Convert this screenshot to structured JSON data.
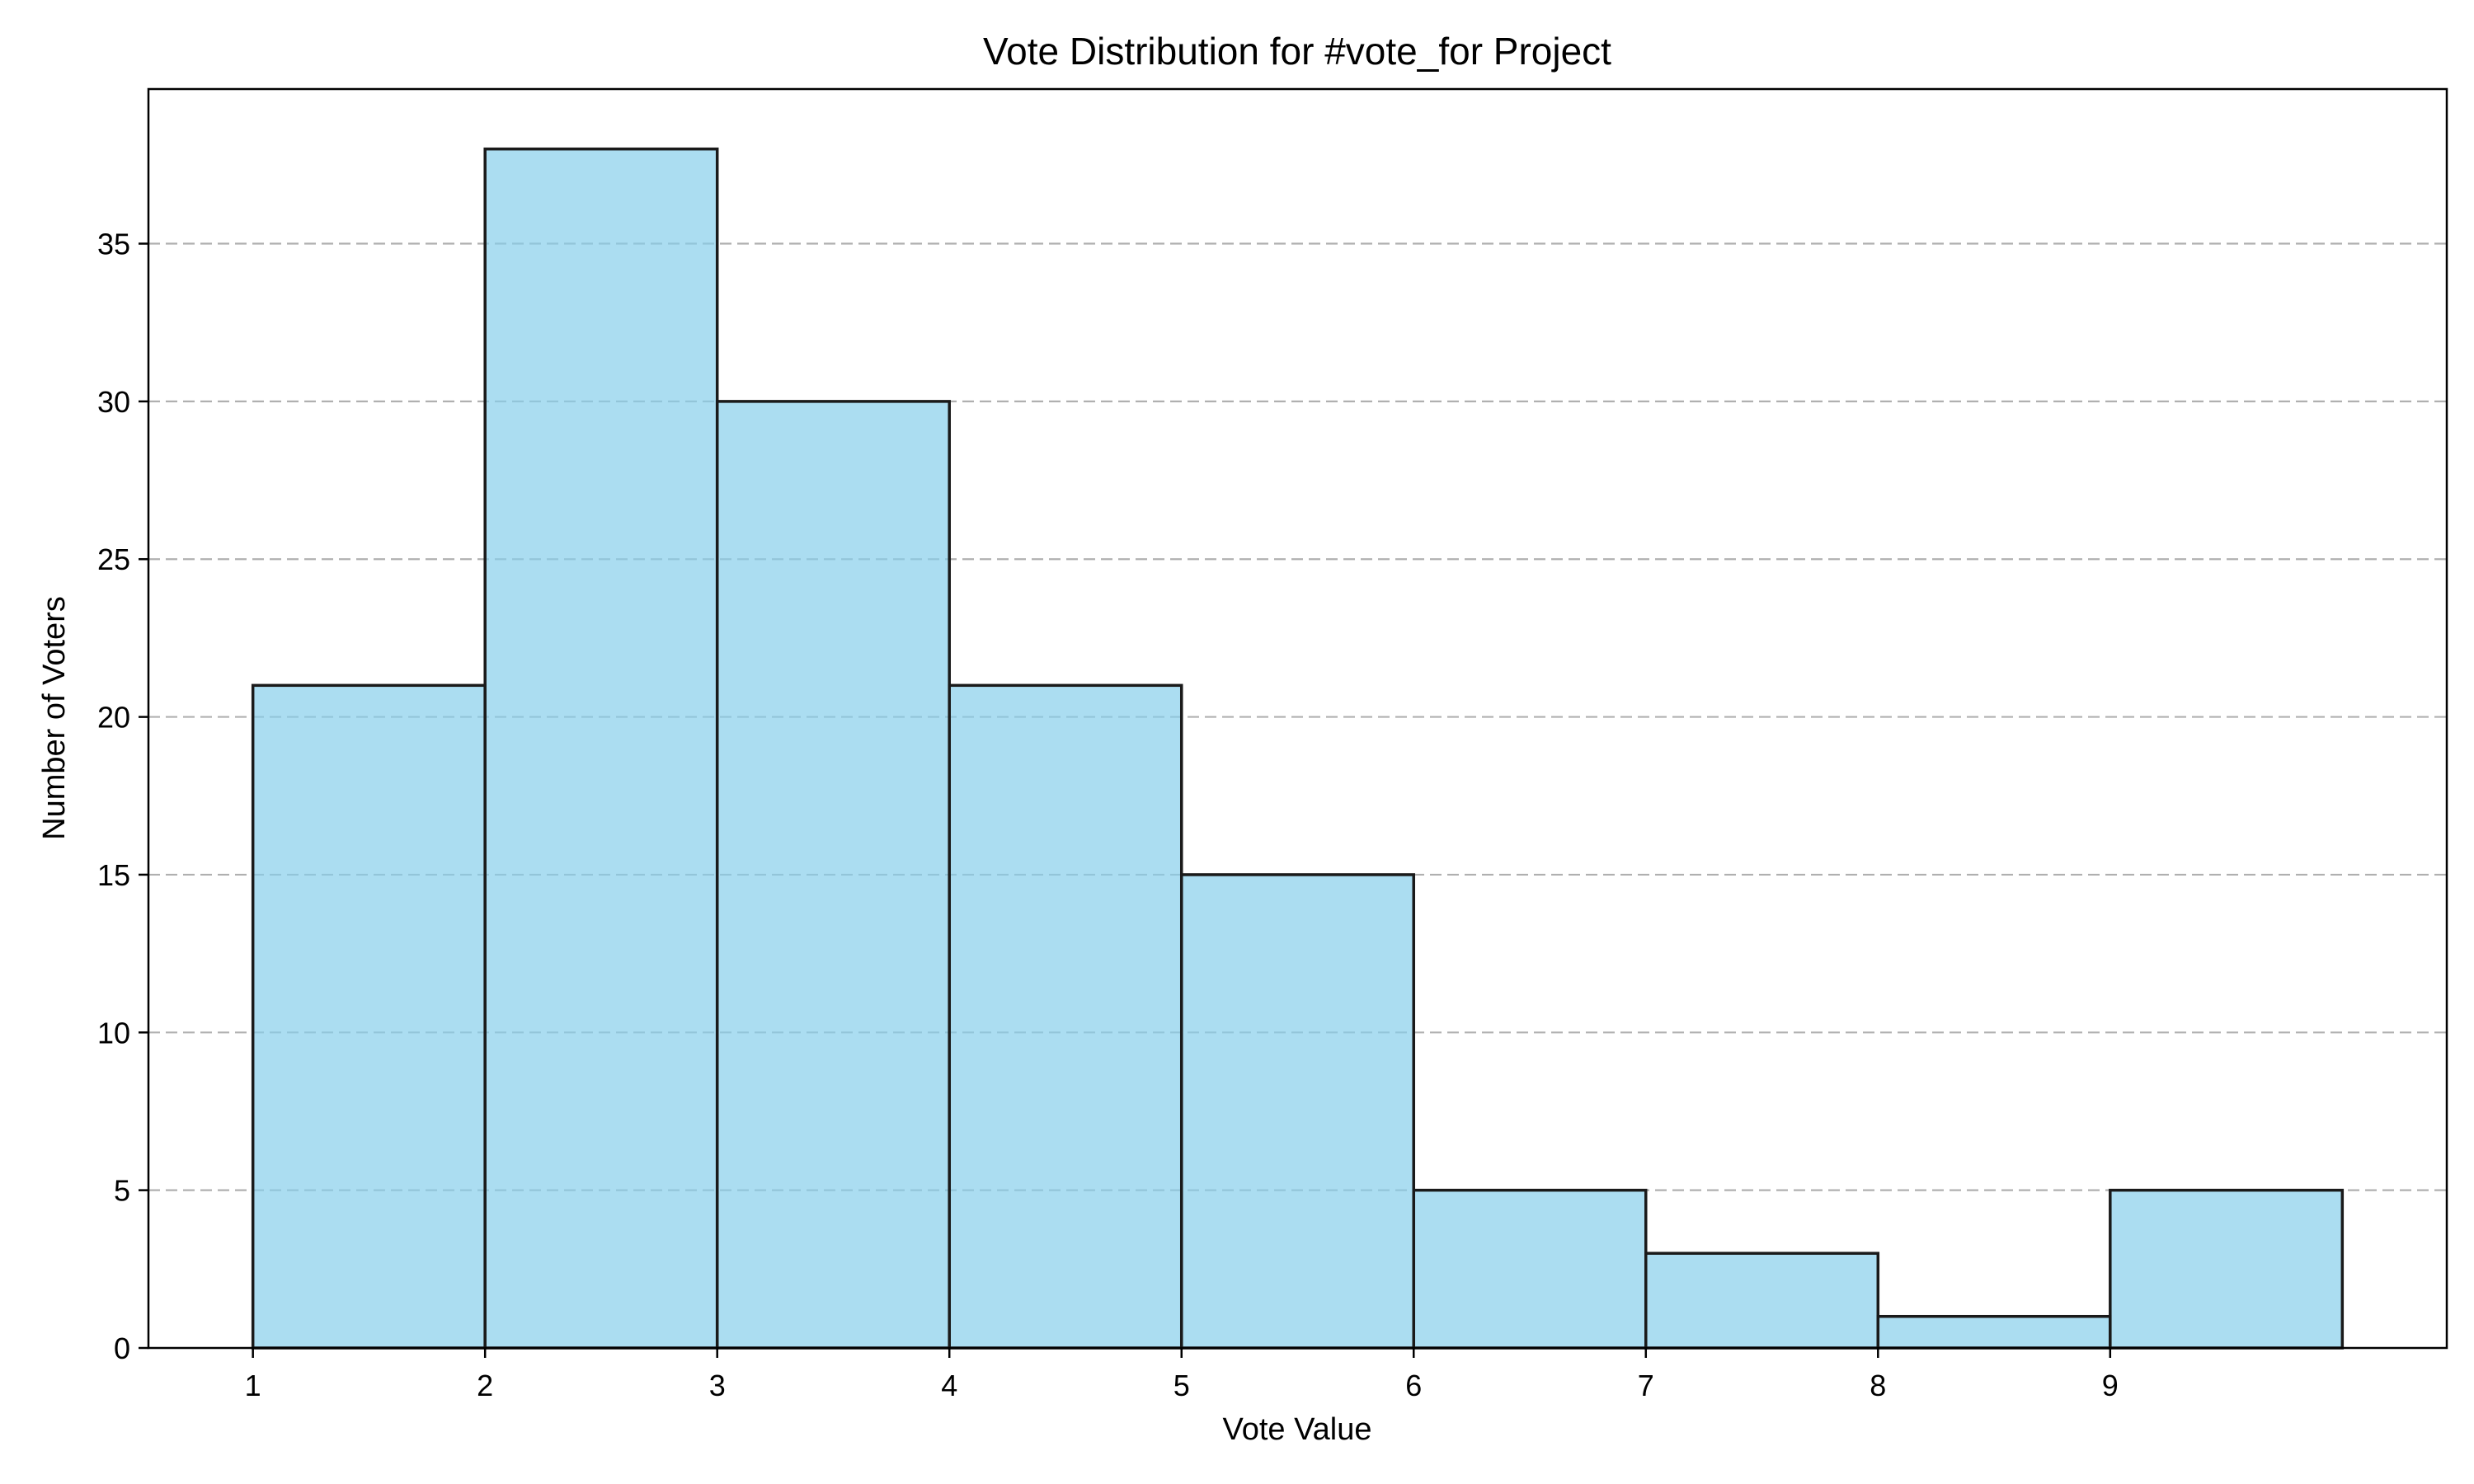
{
  "chart_data": {
    "type": "bar",
    "title": "Vote Distribution for #vote_for Project",
    "xlabel": "Vote Value",
    "ylabel": "Number of Voters",
    "bins": [
      {
        "start": 1,
        "end": 2,
        "count": 21
      },
      {
        "start": 2,
        "end": 3,
        "count": 38
      },
      {
        "start": 3,
        "end": 4,
        "count": 30
      },
      {
        "start": 4,
        "end": 5,
        "count": 21
      },
      {
        "start": 5,
        "end": 6,
        "count": 15
      },
      {
        "start": 6,
        "end": 7,
        "count": 5
      },
      {
        "start": 7,
        "end": 8,
        "count": 3
      },
      {
        "start": 8,
        "end": 9,
        "count": 1
      },
      {
        "start": 9,
        "end": 10,
        "count": 5
      }
    ],
    "xticks": [
      "1",
      "2",
      "3",
      "4",
      "5",
      "6",
      "7",
      "8",
      "9"
    ],
    "yticks": [
      "0",
      "5",
      "10",
      "15",
      "20",
      "25",
      "30",
      "35"
    ],
    "xlim": [
      0.55,
      10.45
    ],
    "ylim": [
      0,
      39.9
    ],
    "grid": "y-dashed",
    "bar_color": "#87CEEB",
    "bar_opacity": 0.7,
    "edge_color": "#000000"
  }
}
